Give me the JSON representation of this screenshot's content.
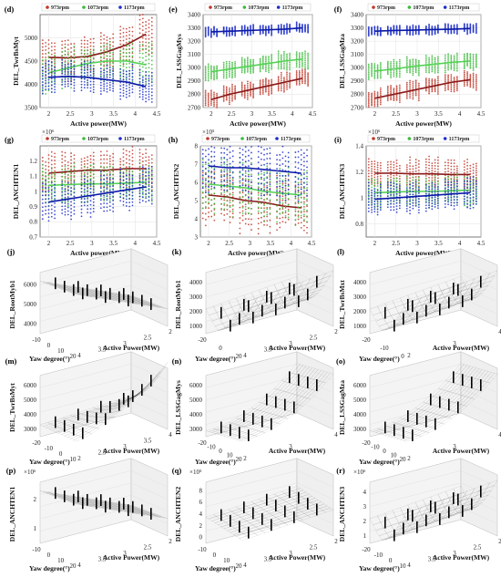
{
  "colors": {
    "red": "#c0392b",
    "green": "#3dbb3d",
    "blue": "#1f2fc8",
    "redline": "#8b1a1a",
    "greenline": "#55d155",
    "blueline": "#0b1aa8"
  },
  "legend": [
    "973rpm",
    "1073rpm",
    "1173rpm"
  ],
  "chart_data": [
    {
      "id": "d",
      "type": "scatter",
      "panel_label": "(d)",
      "ylabel": "DEL_TwrBsMyt",
      "xlabel": "Active power(MW)",
      "xlim": [
        1.8,
        4.5
      ],
      "ylim": [
        3500,
        5500
      ],
      "xticks": [
        "2",
        "2.5",
        "3",
        "3.5",
        "4",
        "4.5"
      ],
      "yticks": [
        "3500",
        "4000",
        "4500",
        "5000"
      ],
      "ytick_values": [
        3500,
        4000,
        4500,
        5000
      ],
      "exp": "",
      "spread": [
        450,
        450,
        350
      ],
      "series": [
        {
          "name": "973rpm",
          "values": [
            4580,
            4570,
            4600,
            4700,
            4850,
            5080
          ]
        },
        {
          "name": "1073rpm",
          "values": [
            4250,
            4350,
            4450,
            4500,
            4500,
            4420
          ]
        },
        {
          "name": "1173rpm",
          "values": [
            4150,
            4170,
            4150,
            4100,
            4050,
            3950
          ]
        }
      ]
    },
    {
      "id": "e",
      "type": "scatter",
      "panel_label": "(e)",
      "ylabel": "DEL_LSSGagMys",
      "xlabel": "Active power(MW)",
      "xlim": [
        1.8,
        4.5
      ],
      "ylim": [
        2700,
        3400
      ],
      "xticks": [
        "2",
        "2.5",
        "3",
        "3.5",
        "4",
        "4.5"
      ],
      "yticks": [
        "2700",
        "2800",
        "2900",
        "3000",
        "3100",
        "3200",
        "3300",
        "3400"
      ],
      "ytick_values": [
        2700,
        2800,
        2900,
        3000,
        3100,
        3200,
        3300,
        3400
      ],
      "exp": "",
      "spread": [
        70,
        70,
        40
      ],
      "series": [
        {
          "name": "973rpm",
          "values": [
            2760,
            2800,
            2830,
            2860,
            2890,
            2920
          ]
        },
        {
          "name": "1073rpm",
          "values": [
            2970,
            2990,
            3010,
            3030,
            3050,
            3065
          ]
        },
        {
          "name": "1173rpm",
          "values": [
            3270,
            3275,
            3280,
            3285,
            3290,
            3300
          ]
        }
      ]
    },
    {
      "id": "f",
      "type": "scatter",
      "panel_label": "(f)",
      "ylabel": "DEL_LSSGagMza",
      "xlabel": "Active power(MW)",
      "xlim": [
        1.8,
        4.5
      ],
      "ylim": [
        2700,
        3400
      ],
      "xticks": [
        "2",
        "2.5",
        "3",
        "3.5",
        "4",
        "4.5"
      ],
      "yticks": [
        "2700",
        "2800",
        "2900",
        "3000",
        "3100",
        "3200",
        "3300",
        "3400"
      ],
      "ytick_values": [
        2700,
        2800,
        2900,
        3000,
        3100,
        3200,
        3300,
        3400
      ],
      "exp": "",
      "spread": [
        70,
        70,
        40
      ],
      "series": [
        {
          "name": "973rpm",
          "values": [
            2770,
            2800,
            2830,
            2860,
            2890,
            2910
          ]
        },
        {
          "name": "1073rpm",
          "values": [
            2975,
            2990,
            3010,
            3025,
            3040,
            3050
          ]
        },
        {
          "name": "1173rpm",
          "values": [
            3275,
            3280,
            3283,
            3287,
            3290,
            3295
          ]
        }
      ]
    },
    {
      "id": "g",
      "type": "scatter",
      "panel_label": "(g)",
      "ylabel": "DEL_ANCHTEN1",
      "xlabel": "Active power(MW)",
      "xlim": [
        1.8,
        4.5
      ],
      "ylim": [
        0.7,
        1.3
      ],
      "xticks": [
        "2",
        "2.5",
        "3",
        "3.5",
        "4",
        "4.5"
      ],
      "yticks": [
        "0.7",
        "0.8",
        "0.9",
        "1",
        "1.1",
        "1.2"
      ],
      "ytick_values": [
        0.7,
        0.8,
        0.9,
        1.0,
        1.1,
        1.2
      ],
      "exp": "×10⁶",
      "spread": [
        0.13,
        0.13,
        0.13
      ],
      "series": [
        {
          "name": "973rpm",
          "values": [
            1.12,
            1.13,
            1.14,
            1.14,
            1.15,
            1.15
          ]
        },
        {
          "name": "1073rpm",
          "values": [
            1.04,
            1.045,
            1.05,
            1.05,
            1.055,
            1.06
          ]
        },
        {
          "name": "1173rpm",
          "values": [
            0.93,
            0.95,
            0.97,
            0.99,
            1.01,
            1.03
          ]
        }
      ]
    },
    {
      "id": "h",
      "type": "scatter",
      "panel_label": "(h)",
      "ylabel": "DEL_ANCHTEN2",
      "xlabel": "Active power(MW)",
      "xlim": [
        1.8,
        4.5
      ],
      "ylim": [
        3,
        8
      ],
      "xticks": [
        "2",
        "2.5",
        "3",
        "3.5",
        "4",
        "4.5"
      ],
      "yticks": [
        "3",
        "4",
        "5",
        "6",
        "7",
        "8"
      ],
      "ytick_values": [
        3,
        4,
        5,
        6,
        7,
        8
      ],
      "exp": "×10⁵",
      "spread": [
        1.6,
        1.6,
        1.6
      ],
      "series": [
        {
          "name": "973rpm",
          "values": [
            5.3,
            5.2,
            5.0,
            4.9,
            4.7,
            4.6
          ]
        },
        {
          "name": "1073rpm",
          "values": [
            5.9,
            5.8,
            5.7,
            5.5,
            5.4,
            5.3
          ]
        },
        {
          "name": "1173rpm",
          "values": [
            6.9,
            6.8,
            6.8,
            6.7,
            6.6,
            6.5
          ]
        }
      ]
    },
    {
      "id": "i",
      "type": "scatter",
      "panel_label": "(i)",
      "ylabel": "DEL_ANCHTEN3",
      "xlabel": "Active power(MW)",
      "xlim": [
        1.8,
        4.5
      ],
      "ylim": [
        0.7,
        1.4
      ],
      "xticks": [
        "2",
        "2.5",
        "3",
        "3.5",
        "4",
        "4.5"
      ],
      "yticks": [
        "0.8",
        "1",
        "1.2",
        "1.4"
      ],
      "ytick_values": [
        0.8,
        1.0,
        1.2,
        1.4
      ],
      "exp": "×10⁶",
      "spread": [
        0.12,
        0.12,
        0.12
      ],
      "series": [
        {
          "name": "973rpm",
          "values": [
            1.19,
            1.19,
            1.185,
            1.185,
            1.18,
            1.18
          ]
        },
        {
          "name": "1073rpm",
          "values": [
            1.04,
            1.045,
            1.05,
            1.05,
            1.055,
            1.06
          ]
        },
        {
          "name": "1173rpm",
          "values": [
            0.99,
            1.0,
            1.01,
            1.02,
            1.03,
            1.04
          ]
        }
      ]
    },
    {
      "id": "j",
      "type": "surface",
      "panel_label": "(j)",
      "zlabel": "DEL_RootMyb1",
      "xlabel": "Active Power(MW)",
      "ylabel": "Yaw degree(°)",
      "zticks": [
        "4000",
        "5000",
        "6000"
      ],
      "yticks": [
        "-10",
        "0",
        "10",
        "20"
      ],
      "xticks": [
        "4",
        "3.5",
        "3",
        "2.5",
        "2"
      ],
      "exp": "",
      "shape": "tilt",
      "front_high": true
    },
    {
      "id": "k",
      "type": "surface",
      "panel_label": "(k)",
      "zlabel": "DEL_RootMyb1",
      "xlabel": "Active Power(MW)",
      "ylabel": "Yaw degree(°)",
      "zticks": [
        "1000",
        "2000",
        "3000",
        "4000"
      ],
      "yticks": [
        "-20",
        "0",
        "20"
      ],
      "xticks": [
        "4",
        "3.5",
        "3",
        "2.5",
        "2"
      ],
      "exp": "",
      "shape": "valley",
      "front_high": false
    },
    {
      "id": "l",
      "type": "surface",
      "panel_label": "(l)",
      "zlabel": "DEL_TwrBsMxt",
      "xlabel": "Active Power(MW)",
      "ylabel": "Yaw degree(°)",
      "zticks": [
        "1000",
        "2000",
        "3000",
        "4000"
      ],
      "yticks": [
        "-20",
        "-10",
        "0"
      ],
      "xticks": [
        "2",
        "3",
        "4"
      ],
      "exp": "",
      "shape": "valley",
      "front_high": false
    },
    {
      "id": "m",
      "type": "surface",
      "panel_label": "(m)",
      "zlabel": "DEL_TwrBsMyt",
      "xlabel": "Active Power(MW)",
      "ylabel": "Yaw degree(°)",
      "zticks": [
        "3000",
        "4000",
        "5000",
        "6000"
      ],
      "yticks": [
        "-20",
        "-10",
        "0",
        "10"
      ],
      "xticks": [
        "2",
        "2.5",
        "3",
        "3.5",
        "4"
      ],
      "exp": "",
      "shape": "corner",
      "front_high": false
    },
    {
      "id": "n",
      "type": "surface",
      "panel_label": "(n)",
      "zlabel": "DEL_LSSGagMys",
      "xlabel": "Active Power(MW)",
      "ylabel": "Yaw degree(°)",
      "zticks": [
        "3000",
        "4000",
        "5000",
        "6000"
      ],
      "yticks": [
        "-20",
        "-10",
        "0",
        "10",
        "20"
      ],
      "xticks": [
        "2",
        "3",
        "4"
      ],
      "exp": "",
      "shape": "ramp",
      "front_high": false
    },
    {
      "id": "o",
      "type": "surface",
      "panel_label": "(o)",
      "zlabel": "DEL_LSSGagMza",
      "xlabel": "Active Power(MW)",
      "ylabel": "Yaw degree(°)",
      "zticks": [
        "3000",
        "4000",
        "5000",
        "6000"
      ],
      "yticks": [
        "-20",
        "-10",
        "0",
        "10",
        "20"
      ],
      "xticks": [
        "2",
        "3",
        "4"
      ],
      "exp": "",
      "shape": "ramp",
      "front_high": false
    },
    {
      "id": "p",
      "type": "surface",
      "panel_label": "(p)",
      "zlabel": "DEL_ANCHTEN1",
      "xlabel": "Active Power(MW)",
      "ylabel": "Yaw degree(°)",
      "zticks": [
        "1",
        "2"
      ],
      "yticks": [
        "-10",
        "0",
        "10",
        "20"
      ],
      "xticks": [
        "4",
        "3.5",
        "3",
        "2.5",
        "2"
      ],
      "exp": "×10⁶",
      "shape": "tilt",
      "front_high": true
    },
    {
      "id": "q",
      "type": "surface",
      "panel_label": "(q)",
      "zlabel": "DEL_ANCHTEN2",
      "xlabel": "Active Power(MW)",
      "ylabel": "Yaw degree(°)",
      "zticks": [
        "0",
        "2",
        "4",
        "6",
        "8"
      ],
      "yticks": [
        "-10",
        "0",
        "10",
        "20"
      ],
      "xticks": [
        "4",
        "3.5",
        "3",
        "2.5",
        "2"
      ],
      "exp": "×10⁵",
      "shape": "flat",
      "front_high": false
    },
    {
      "id": "r",
      "type": "surface",
      "panel_label": "(r)",
      "zlabel": "DEL_ANCHTEN3",
      "xlabel": "Active Power(MW)",
      "ylabel": "Yaw degree(°)",
      "zticks": [
        "1",
        "2",
        "3",
        "4"
      ],
      "yticks": [
        "-20",
        "-10",
        "0",
        "10"
      ],
      "xticks": [
        "4",
        "3.5",
        "3",
        "2.5",
        "2"
      ],
      "exp": "×10⁶",
      "shape": "valley",
      "front_high": false
    }
  ]
}
